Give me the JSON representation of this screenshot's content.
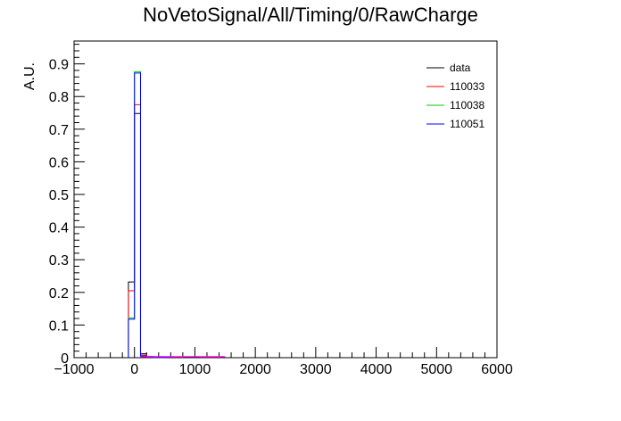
{
  "chart_data": {
    "type": "histogram",
    "title": "NoVetoSignal/All/Timing/0/RawCharge",
    "xlabel": "",
    "ylabel": "A.U.",
    "xlim": [
      -1000,
      6000
    ],
    "ylim": [
      0,
      0.97
    ],
    "x_ticks": [
      "−1000",
      "0",
      "1000",
      "2000",
      "3000",
      "4000",
      "5000",
      "6000"
    ],
    "y_ticks": [
      "0",
      "0.1",
      "0.2",
      "0.3",
      "0.4",
      "0.5",
      "0.6",
      "0.7",
      "0.8",
      "0.9"
    ],
    "bin_width": 100,
    "legend_position": "top-right",
    "series": [
      {
        "name": "data",
        "color": "#000000",
        "bins": [
          {
            "x0": -100,
            "y": 0.232
          },
          {
            "x0": 0,
            "y": 0.748
          },
          {
            "x0": 100,
            "y": 0.012
          },
          {
            "x0": 200,
            "y": 0.004
          },
          {
            "x0": 300,
            "y": 0.002
          },
          {
            "x0": 400,
            "y": 0.001
          },
          {
            "x0": 500,
            "y": 0.001
          },
          {
            "x0": 600,
            "y": 0.001
          },
          {
            "x0": 700,
            "y": 0.001
          }
        ]
      },
      {
        "name": "110033",
        "color": "#ff0000",
        "bins": [
          {
            "x0": -100,
            "y": 0.205
          },
          {
            "x0": 0,
            "y": 0.775
          },
          {
            "x0": 100,
            "y": 0.008
          },
          {
            "x0": 200,
            "y": 0.004
          },
          {
            "x0": 300,
            "y": 0.003
          },
          {
            "x0": 400,
            "y": 0.003
          },
          {
            "x0": 500,
            "y": 0.002
          },
          {
            "x0": 600,
            "y": 0.002
          },
          {
            "x0": 700,
            "y": 0.002
          },
          {
            "x0": 1100,
            "y": 0.002
          },
          {
            "x0": 1200,
            "y": 0.002
          },
          {
            "x0": 1300,
            "y": 0.002
          }
        ]
      },
      {
        "name": "110038",
        "color": "#00cc00",
        "bins": [
          {
            "x0": -100,
            "y": 0.122
          },
          {
            "x0": 0,
            "y": 0.876
          },
          {
            "x0": 100,
            "y": 0.004
          },
          {
            "x0": 200,
            "y": 0.002
          },
          {
            "x0": 300,
            "y": 0.001
          },
          {
            "x0": 400,
            "y": 0.001
          }
        ]
      },
      {
        "name": "110051",
        "color": "#0000ff",
        "bins": [
          {
            "x0": -100,
            "y": 0.118
          },
          {
            "x0": 0,
            "y": 0.872
          },
          {
            "x0": 100,
            "y": 0.005
          },
          {
            "x0": 200,
            "y": 0.002
          },
          {
            "x0": 300,
            "y": 0.001
          },
          {
            "x0": 400,
            "y": 0.001
          },
          {
            "x0": 500,
            "y": 0.001
          }
        ]
      }
    ],
    "extra_marks": [
      {
        "color": "#ff00ff",
        "x0": 100,
        "x1": 1500,
        "y": 0.003
      }
    ]
  }
}
